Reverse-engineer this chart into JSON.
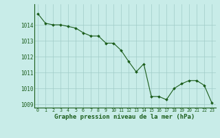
{
  "x": [
    0,
    1,
    2,
    3,
    4,
    5,
    6,
    7,
    8,
    9,
    10,
    11,
    12,
    13,
    14,
    15,
    16,
    17,
    18,
    19,
    20,
    21,
    22,
    23
  ],
  "y": [
    1014.7,
    1014.1,
    1014.0,
    1014.0,
    1013.9,
    1013.8,
    1013.5,
    1013.3,
    1013.3,
    1012.85,
    1012.85,
    1012.4,
    1011.7,
    1011.05,
    1011.55,
    1009.5,
    1009.5,
    1009.3,
    1010.0,
    1010.3,
    1010.5,
    1010.5,
    1010.2,
    1009.1
  ],
  "line_color": "#1a5c1a",
  "marker_color": "#1a5c1a",
  "bg_color": "#c8ece8",
  "grid_color": "#a0ccc8",
  "xlabel": "Graphe pression niveau de la mer (hPa)",
  "xlabel_color": "#1a5c1a",
  "tick_color": "#1a5c1a",
  "ylim": [
    1008.8,
    1015.3
  ],
  "xlim": [
    -0.5,
    23.5
  ],
  "yticks": [
    1009,
    1010,
    1011,
    1012,
    1013,
    1014
  ],
  "xticks": [
    0,
    1,
    2,
    3,
    4,
    5,
    6,
    7,
    8,
    9,
    10,
    11,
    12,
    13,
    14,
    15,
    16,
    17,
    18,
    19,
    20,
    21,
    22,
    23
  ]
}
